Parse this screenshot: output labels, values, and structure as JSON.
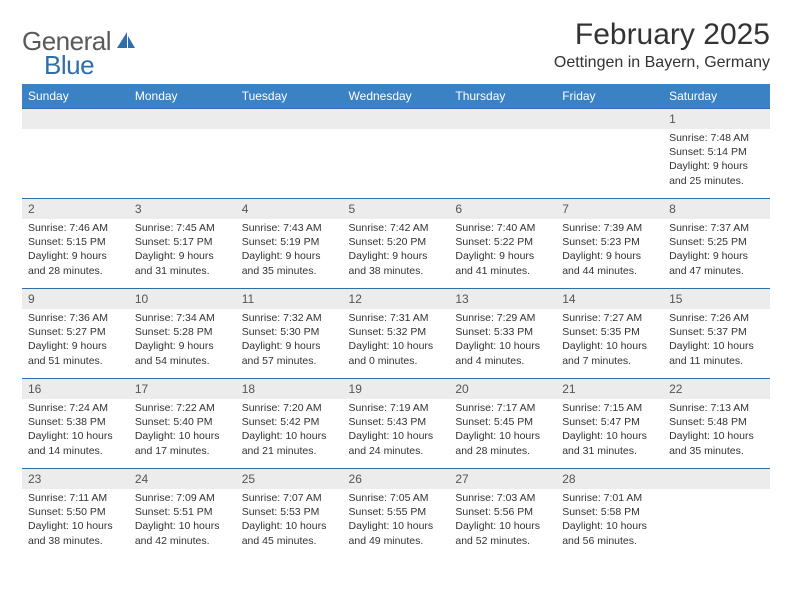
{
  "brand": {
    "text1": "General",
    "text2": "Blue"
  },
  "title": {
    "month": "February 2025",
    "location": "Oettingen in Bayern, Germany"
  },
  "dayHeaders": [
    "Sunday",
    "Monday",
    "Tuesday",
    "Wednesday",
    "Thursday",
    "Friday",
    "Saturday"
  ],
  "colors": {
    "headerBg": "#3b82c4",
    "headerText": "#ffffff",
    "daynumBg": "#ececec",
    "borderColor": "#2e6fab",
    "brandGray": "#5a5a5a",
    "brandBlue": "#2e6fab"
  },
  "weeks": [
    [
      {
        "n": "",
        "lines": []
      },
      {
        "n": "",
        "lines": []
      },
      {
        "n": "",
        "lines": []
      },
      {
        "n": "",
        "lines": []
      },
      {
        "n": "",
        "lines": []
      },
      {
        "n": "",
        "lines": []
      },
      {
        "n": "1",
        "lines": [
          "Sunrise: 7:48 AM",
          "Sunset: 5:14 PM",
          "Daylight: 9 hours and 25 minutes."
        ]
      }
    ],
    [
      {
        "n": "2",
        "lines": [
          "Sunrise: 7:46 AM",
          "Sunset: 5:15 PM",
          "Daylight: 9 hours and 28 minutes."
        ]
      },
      {
        "n": "3",
        "lines": [
          "Sunrise: 7:45 AM",
          "Sunset: 5:17 PM",
          "Daylight: 9 hours and 31 minutes."
        ]
      },
      {
        "n": "4",
        "lines": [
          "Sunrise: 7:43 AM",
          "Sunset: 5:19 PM",
          "Daylight: 9 hours and 35 minutes."
        ]
      },
      {
        "n": "5",
        "lines": [
          "Sunrise: 7:42 AM",
          "Sunset: 5:20 PM",
          "Daylight: 9 hours and 38 minutes."
        ]
      },
      {
        "n": "6",
        "lines": [
          "Sunrise: 7:40 AM",
          "Sunset: 5:22 PM",
          "Daylight: 9 hours and 41 minutes."
        ]
      },
      {
        "n": "7",
        "lines": [
          "Sunrise: 7:39 AM",
          "Sunset: 5:23 PM",
          "Daylight: 9 hours and 44 minutes."
        ]
      },
      {
        "n": "8",
        "lines": [
          "Sunrise: 7:37 AM",
          "Sunset: 5:25 PM",
          "Daylight: 9 hours and 47 minutes."
        ]
      }
    ],
    [
      {
        "n": "9",
        "lines": [
          "Sunrise: 7:36 AM",
          "Sunset: 5:27 PM",
          "Daylight: 9 hours and 51 minutes."
        ]
      },
      {
        "n": "10",
        "lines": [
          "Sunrise: 7:34 AM",
          "Sunset: 5:28 PM",
          "Daylight: 9 hours and 54 minutes."
        ]
      },
      {
        "n": "11",
        "lines": [
          "Sunrise: 7:32 AM",
          "Sunset: 5:30 PM",
          "Daylight: 9 hours and 57 minutes."
        ]
      },
      {
        "n": "12",
        "lines": [
          "Sunrise: 7:31 AM",
          "Sunset: 5:32 PM",
          "Daylight: 10 hours and 0 minutes."
        ]
      },
      {
        "n": "13",
        "lines": [
          "Sunrise: 7:29 AM",
          "Sunset: 5:33 PM",
          "Daylight: 10 hours and 4 minutes."
        ]
      },
      {
        "n": "14",
        "lines": [
          "Sunrise: 7:27 AM",
          "Sunset: 5:35 PM",
          "Daylight: 10 hours and 7 minutes."
        ]
      },
      {
        "n": "15",
        "lines": [
          "Sunrise: 7:26 AM",
          "Sunset: 5:37 PM",
          "Daylight: 10 hours and 11 minutes."
        ]
      }
    ],
    [
      {
        "n": "16",
        "lines": [
          "Sunrise: 7:24 AM",
          "Sunset: 5:38 PM",
          "Daylight: 10 hours and 14 minutes."
        ]
      },
      {
        "n": "17",
        "lines": [
          "Sunrise: 7:22 AM",
          "Sunset: 5:40 PM",
          "Daylight: 10 hours and 17 minutes."
        ]
      },
      {
        "n": "18",
        "lines": [
          "Sunrise: 7:20 AM",
          "Sunset: 5:42 PM",
          "Daylight: 10 hours and 21 minutes."
        ]
      },
      {
        "n": "19",
        "lines": [
          "Sunrise: 7:19 AM",
          "Sunset: 5:43 PM",
          "Daylight: 10 hours and 24 minutes."
        ]
      },
      {
        "n": "20",
        "lines": [
          "Sunrise: 7:17 AM",
          "Sunset: 5:45 PM",
          "Daylight: 10 hours and 28 minutes."
        ]
      },
      {
        "n": "21",
        "lines": [
          "Sunrise: 7:15 AM",
          "Sunset: 5:47 PM",
          "Daylight: 10 hours and 31 minutes."
        ]
      },
      {
        "n": "22",
        "lines": [
          "Sunrise: 7:13 AM",
          "Sunset: 5:48 PM",
          "Daylight: 10 hours and 35 minutes."
        ]
      }
    ],
    [
      {
        "n": "23",
        "lines": [
          "Sunrise: 7:11 AM",
          "Sunset: 5:50 PM",
          "Daylight: 10 hours and 38 minutes."
        ]
      },
      {
        "n": "24",
        "lines": [
          "Sunrise: 7:09 AM",
          "Sunset: 5:51 PM",
          "Daylight: 10 hours and 42 minutes."
        ]
      },
      {
        "n": "25",
        "lines": [
          "Sunrise: 7:07 AM",
          "Sunset: 5:53 PM",
          "Daylight: 10 hours and 45 minutes."
        ]
      },
      {
        "n": "26",
        "lines": [
          "Sunrise: 7:05 AM",
          "Sunset: 5:55 PM",
          "Daylight: 10 hours and 49 minutes."
        ]
      },
      {
        "n": "27",
        "lines": [
          "Sunrise: 7:03 AM",
          "Sunset: 5:56 PM",
          "Daylight: 10 hours and 52 minutes."
        ]
      },
      {
        "n": "28",
        "lines": [
          "Sunrise: 7:01 AM",
          "Sunset: 5:58 PM",
          "Daylight: 10 hours and 56 minutes."
        ]
      },
      {
        "n": "",
        "lines": []
      }
    ]
  ]
}
